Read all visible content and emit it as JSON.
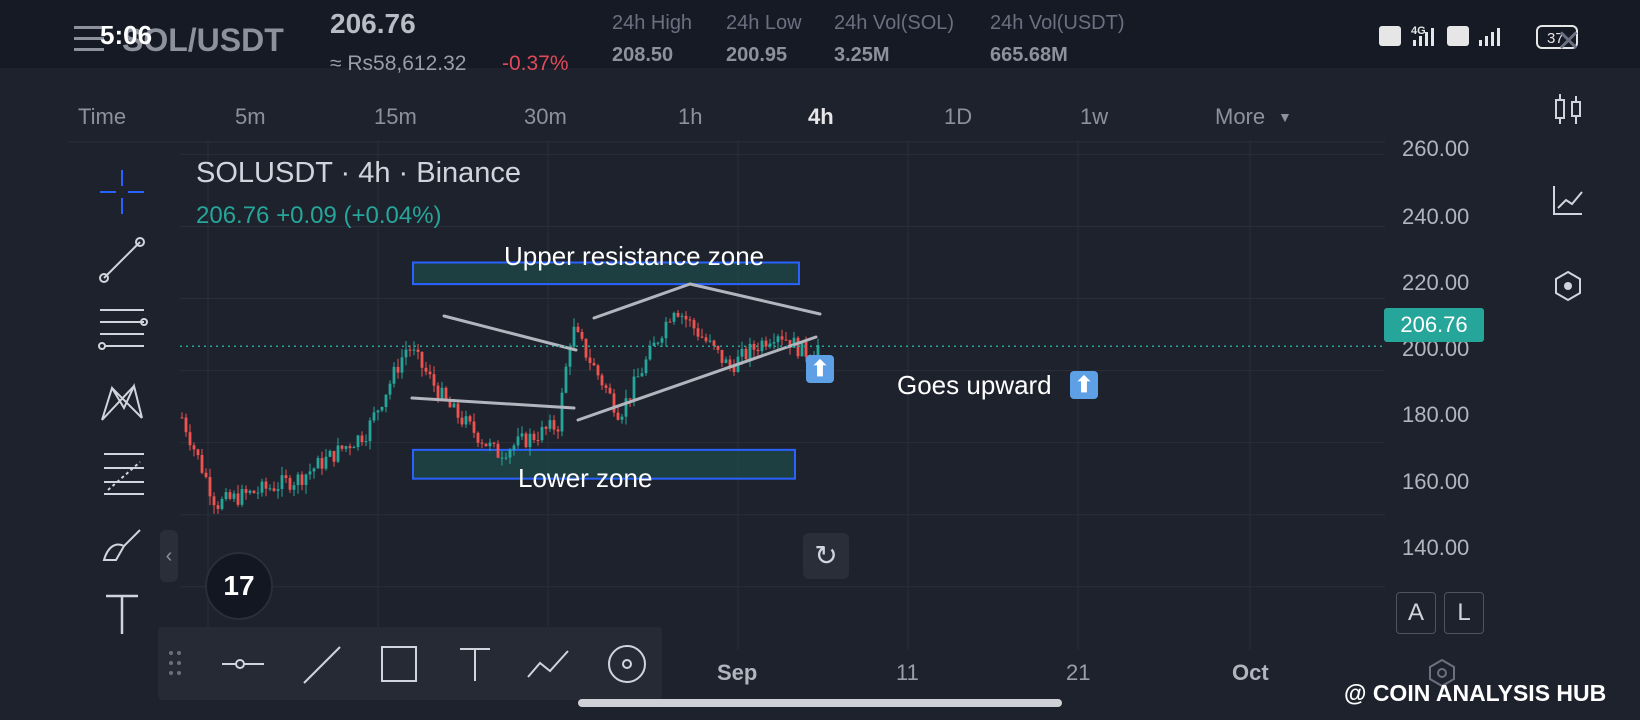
{
  "status": {
    "time": "5:06",
    "battery": "37",
    "network": "4G"
  },
  "header": {
    "pair": "SOL/USDT",
    "last_price": "206.76",
    "price_local": "≈ Rs58,612.32",
    "change_pct": "-0.37%",
    "stats": [
      {
        "label": "24h High",
        "value": "208.50"
      },
      {
        "label": "24h Low",
        "value": "200.95"
      },
      {
        "label": "24h Vol(SOL)",
        "value": "3.25M"
      },
      {
        "label": "24h Vol(USDT)",
        "value": "665.68M"
      }
    ]
  },
  "timeframes": [
    "Time",
    "5m",
    "15m",
    "30m",
    "1h",
    "4h",
    "1D",
    "1w",
    "More"
  ],
  "active_timeframe": "4h",
  "chart_header": {
    "title": "SOLUSDT · 4h · Binance",
    "quote": "206.76  +0.09 (+0.04%)"
  },
  "chart_data": {
    "type": "candlestick",
    "symbol": "SOLUSDT",
    "interval": "4h",
    "exchange": "Binance",
    "last_price": 206.76,
    "y_ticks": [
      "260.00",
      "240.00",
      "220.00",
      "200.00",
      "180.00",
      "160.00",
      "140.00"
    ],
    "ylim": [
      128,
      264
    ],
    "x_ticks": [
      "Sep",
      "11",
      "21",
      "Oct"
    ],
    "price_path_approx": [
      {
        "x": 0,
        "price": 187
      },
      {
        "x": 0.05,
        "price": 163
      },
      {
        "x": 0.17,
        "price": 170
      },
      {
        "x": 0.27,
        "price": 183
      },
      {
        "x": 0.33,
        "price": 207
      },
      {
        "x": 0.39,
        "price": 190
      },
      {
        "x": 0.46,
        "price": 177
      },
      {
        "x": 0.55,
        "price": 185
      },
      {
        "x": 0.57,
        "price": 212
      },
      {
        "x": 0.64,
        "price": 188
      },
      {
        "x": 0.72,
        "price": 218
      },
      {
        "x": 0.8,
        "price": 201
      },
      {
        "x": 0.87,
        "price": 211
      },
      {
        "x": 0.91,
        "price": 205
      },
      {
        "x": 0.93,
        "price": 206.76
      }
    ],
    "annotations": [
      {
        "type": "zone",
        "label": "Upper resistance zone",
        "from": 224,
        "to": 230
      },
      {
        "type": "zone",
        "label": "Lower zone",
        "from": 170,
        "to": 178
      },
      {
        "type": "note",
        "label": "Goes upward ⬆️"
      }
    ]
  },
  "price_tag": "206.76",
  "annotations": {
    "upper_zone": "Upper resistance zone",
    "lower_zone": "Lower zone",
    "goes_up": "Goes upward",
    "arrow": "⬆"
  },
  "tv_logo": "17",
  "buttons": {
    "auto": "A",
    "log": "L",
    "collapse": "‹",
    "reset": "↻"
  },
  "watermark": "@ COIN ANALYSIS HUB",
  "colors": {
    "bg": "#1e222d",
    "up": "#26a69a",
    "down": "#ef5350",
    "zone_fill": "#1f4a4a",
    "zone_border": "#2962ff",
    "trendline": "#b2b5be"
  }
}
